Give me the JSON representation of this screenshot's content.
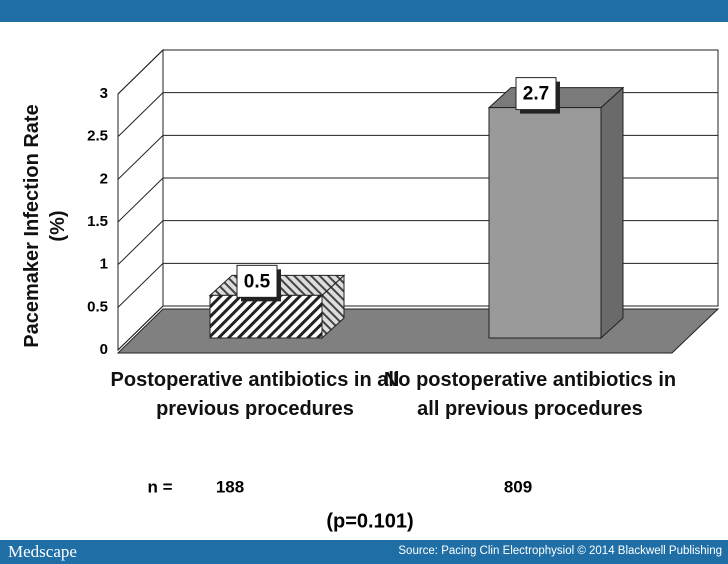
{
  "chart_data": {
    "type": "bar3d",
    "y_label": "Pacemaker Infection Rate (%)",
    "categories": [
      "Postoperative antibiotics in all previous procedures",
      "No postoperative antibiotics in all previous procedures"
    ],
    "values": [
      0.5,
      2.7
    ],
    "colors": [
      "#ffffff",
      "#9a9a9a"
    ],
    "hatch": [
      true,
      false
    ],
    "ylim": [
      0,
      3
    ],
    "yticks": [
      0,
      0.5,
      1,
      1.5,
      2,
      2.5,
      3
    ],
    "grid": true,
    "n_label": "n =",
    "n_values": [
      188,
      809
    ],
    "annotation": "(p=0.101)"
  },
  "footer": {
    "brand": "Medscape",
    "source": "Source: Pacing Clin Electrophysiol © 2014 Blackwell Publishing"
  }
}
